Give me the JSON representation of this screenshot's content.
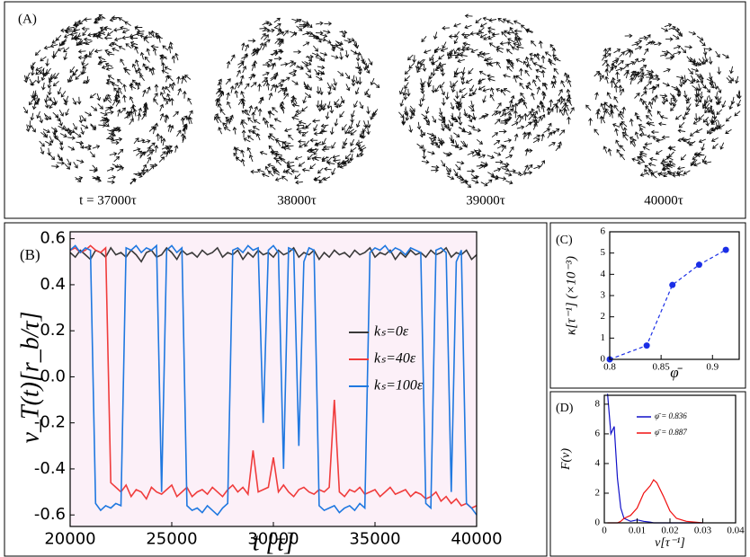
{
  "snapshots": {
    "label": "(A)",
    "times": [
      "t = 37000τ",
      "38000τ",
      "39000τ",
      "40000τ"
    ]
  },
  "chart_data": [
    {
      "type": "line",
      "panel_label": "(B)",
      "y_label": "v_T(t)[r_b/τ]",
      "x_label": "t [τ]",
      "xlim": [
        20000,
        40000
      ],
      "xticks": [
        20000,
        25000,
        30000,
        35000,
        40000
      ],
      "ylim": [
        -0.65,
        0.63
      ],
      "yticks": [
        -0.6,
        -0.4,
        -0.2,
        {
          "value": 0,
          "label": "0.0"
        },
        0.2,
        0.4,
        0.6
      ],
      "legend": "right",
      "background": "#fcf0f8",
      "x": [
        20000,
        20250,
        20500,
        20750,
        21000,
        21250,
        21500,
        21750,
        22000,
        22250,
        22500,
        22750,
        23000,
        23250,
        23500,
        23750,
        24000,
        24250,
        24500,
        24750,
        25000,
        25250,
        25500,
        25750,
        26000,
        26250,
        26500,
        26750,
        27000,
        27250,
        27500,
        27750,
        28000,
        28250,
        28500,
        28750,
        29000,
        29250,
        29500,
        29750,
        30000,
        30250,
        30500,
        30750,
        31000,
        31250,
        31500,
        31750,
        32000,
        32250,
        32500,
        32750,
        33000,
        33250,
        33500,
        33750,
        34000,
        34250,
        34500,
        34750,
        35000,
        35250,
        35500,
        35750,
        36000,
        36250,
        36500,
        36750,
        37000,
        37250,
        37500,
        37750,
        38000,
        38250,
        38500,
        38750,
        39000,
        39250,
        39500,
        39750,
        40000
      ],
      "series": [
        {
          "name": "kₛ=0ε",
          "color": "#3a3a3a",
          "values": [
            0.54,
            0.52,
            0.55,
            0.53,
            0.51,
            0.55,
            0.54,
            0.52,
            0.56,
            0.53,
            0.54,
            0.52,
            0.55,
            0.53,
            0.5,
            0.54,
            0.55,
            0.52,
            0.53,
            0.56,
            0.54,
            0.51,
            0.55,
            0.53,
            0.54,
            0.52,
            0.55,
            0.53,
            0.54,
            0.56,
            0.52,
            0.54,
            0.53,
            0.55,
            0.51,
            0.54,
            0.52,
            0.55,
            0.53,
            0.54,
            0.52,
            0.55,
            0.53,
            0.54,
            0.56,
            0.52,
            0.54,
            0.53,
            0.55,
            0.51,
            0.54,
            0.52,
            0.55,
            0.53,
            0.54,
            0.52,
            0.55,
            0.53,
            0.54,
            0.56,
            0.52,
            0.54,
            0.53,
            0.55,
            0.51,
            0.54,
            0.52,
            0.55,
            0.53,
            0.54,
            0.52,
            0.55,
            0.53,
            0.54,
            0.56,
            0.52,
            0.54,
            0.53,
            0.55,
            0.51,
            0.53
          ]
        },
        {
          "name": "kₛ=40ε",
          "color": "#f03c3c",
          "values": [
            0.55,
            0.56,
            0.54,
            0.55,
            0.57,
            0.55,
            0.54,
            0.56,
            -0.46,
            -0.48,
            -0.5,
            -0.47,
            -0.52,
            -0.49,
            -0.5,
            -0.53,
            -0.48,
            -0.5,
            -0.51,
            -0.49,
            -0.47,
            -0.52,
            -0.5,
            -0.48,
            -0.52,
            -0.5,
            -0.49,
            -0.51,
            -0.48,
            -0.5,
            -0.52,
            -0.49,
            -0.47,
            -0.5,
            -0.48,
            -0.51,
            -0.32,
            -0.5,
            -0.49,
            -0.48,
            -0.35,
            -0.5,
            -0.47,
            -0.5,
            -0.52,
            -0.49,
            -0.48,
            -0.5,
            -0.51,
            -0.49,
            -0.5,
            -0.48,
            -0.1,
            -0.5,
            -0.52,
            -0.49,
            -0.5,
            -0.48,
            -0.51,
            -0.5,
            -0.49,
            -0.52,
            -0.5,
            -0.48,
            -0.51,
            -0.5,
            -0.49,
            -0.52,
            -0.5,
            -0.51,
            -0.53,
            -0.52,
            -0.5,
            -0.54,
            -0.52,
            -0.55,
            -0.53,
            -0.56,
            -0.55,
            -0.57,
            -0.56
          ]
        },
        {
          "name": "kₛ=100ε",
          "color": "#1f78e0",
          "values": [
            0.55,
            0.57,
            0.54,
            0.56,
            0.55,
            -0.55,
            -0.58,
            -0.56,
            -0.57,
            -0.55,
            -0.56,
            0.56,
            0.55,
            0.57,
            0.54,
            0.56,
            0.55,
            0.57,
            -0.5,
            0.55,
            0.57,
            0.54,
            0.56,
            -0.56,
            -0.58,
            -0.57,
            -0.59,
            -0.56,
            -0.58,
            -0.6,
            -0.57,
            -0.55,
            0.55,
            0.56,
            0.54,
            0.57,
            0.55,
            0.56,
            -0.2,
            0.55,
            0.57,
            0.54,
            -0.4,
            0.56,
            0.55,
            -0.3,
            0.5,
            0.56,
            0.55,
            -0.56,
            -0.58,
            -0.57,
            -0.56,
            -0.59,
            -0.57,
            -0.56,
            -0.58,
            -0.55,
            -0.57,
            0.54,
            0.56,
            0.55,
            0.57,
            0.54,
            0.56,
            0.55,
            0.53,
            0.56,
            0.55,
            0.54,
            -0.55,
            -0.57,
            0.55,
            0.56,
            0.54,
            -0.5,
            0.5,
            0.55,
            -0.55,
            -0.57,
            -0.6
          ]
        }
      ]
    },
    {
      "type": "line",
      "panel_label": "(C)",
      "y_label": "κ[τ⁻¹] (×10⁻³)",
      "x_label": "φ̄",
      "xlim": [
        0.8,
        0.926
      ],
      "xticks": [
        0.8,
        0.85,
        0.9
      ],
      "ylim": [
        0,
        6
      ],
      "yticks": [
        0,
        1,
        2,
        3,
        4,
        5,
        6
      ],
      "markers": true,
      "dashed": true,
      "x": [
        0.8,
        0.836,
        0.861,
        0.887,
        0.913
      ],
      "series": [
        {
          "color": "#1a2ee6",
          "values": [
            0,
            0.65,
            3.5,
            4.45,
            5.15
          ]
        }
      ]
    },
    {
      "type": "line",
      "panel_label": "(D)",
      "y_label": "F(ν)",
      "x_label": "ν[τ⁻¹]",
      "xlim": [
        0,
        0.04
      ],
      "xticks": [
        0,
        0.01,
        0.02,
        0.03,
        0.04
      ],
      "ylim": [
        0,
        8.6
      ],
      "yticks": [
        0,
        2,
        4,
        6,
        8
      ],
      "legend": "upper right",
      "x": [
        0.001,
        0.002,
        0.003,
        0.004,
        0.005,
        0.006,
        0.008,
        0.01,
        0.012,
        0.014,
        0.015,
        0.016,
        0.018,
        0.02,
        0.022,
        0.025,
        0.03
      ],
      "series": [
        {
          "name": "φ̄ = 0.836",
          "color": "#1010c8",
          "values": [
            8.7,
            6.0,
            6.5,
            3.0,
            1.0,
            0.3,
            0.1,
            0.2,
            0.1,
            0.05,
            0,
            0,
            0,
            0,
            0,
            0,
            0
          ]
        },
        {
          "name": "φ̄ = 0.887",
          "color": "#f01010",
          "values": [
            0,
            0,
            0,
            0,
            0.1,
            0.3,
            0.5,
            1.0,
            2.0,
            2.5,
            2.9,
            2.7,
            1.8,
            0.8,
            0.3,
            0.1,
            0
          ]
        }
      ]
    }
  ]
}
